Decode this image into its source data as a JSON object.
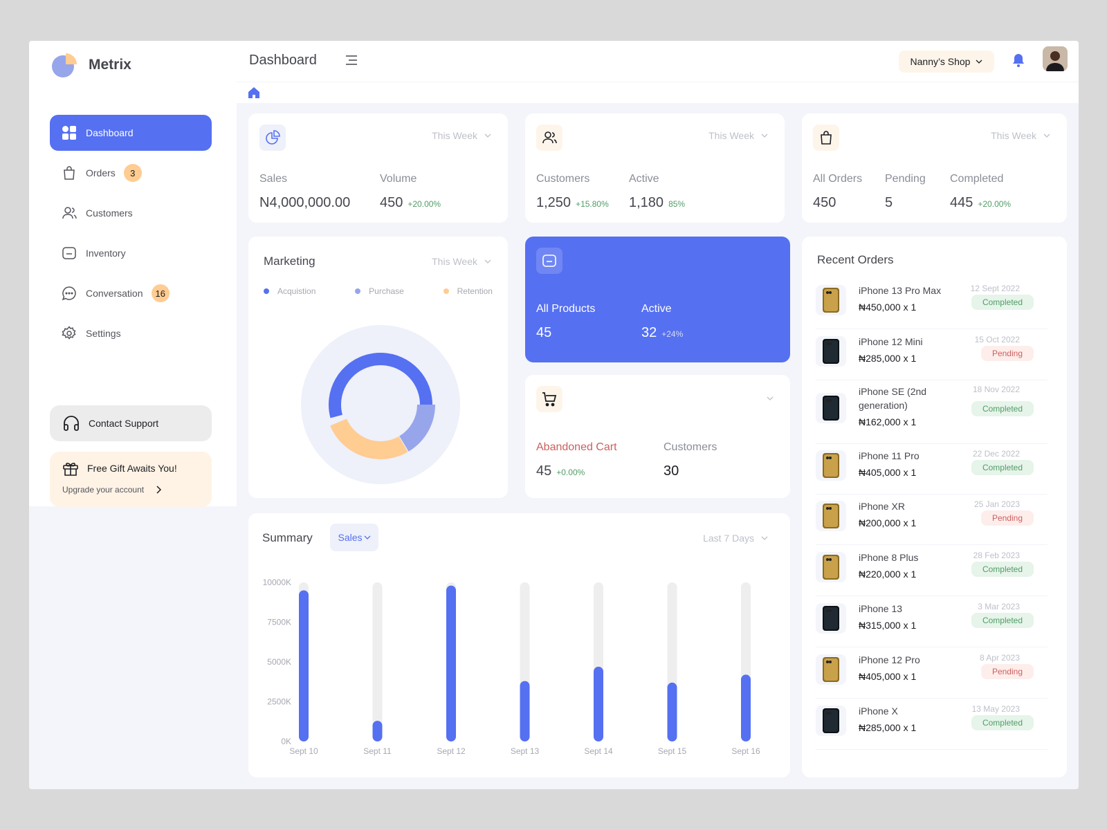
{
  "app": {
    "name": "Metrix"
  },
  "header": {
    "title": "Dashboard",
    "shop": "Nanny’s Shop"
  },
  "sidebar": {
    "items": [
      {
        "label": "Dashboard"
      },
      {
        "label": "Orders",
        "badge": "3"
      },
      {
        "label": "Customers"
      },
      {
        "label": "Inventory"
      },
      {
        "label": "Conversation",
        "badge": "16"
      },
      {
        "label": "Settings"
      }
    ],
    "support": "Contact Support",
    "gift_title": "Free Gift Awaits You!",
    "gift_sub": "Upgrade your account"
  },
  "sales_card": {
    "period": "This Week",
    "sales_label": "Sales",
    "sales_value": "N4,000,000.00",
    "volume_label": "Volume",
    "volume_value": "450",
    "volume_change": "+20.00%"
  },
  "customers_card": {
    "period": "This Week",
    "customers_label": "Customers",
    "customers_value": "1,250",
    "customers_change": "+15.80%",
    "active_label": "Active",
    "active_value": "1,180",
    "active_change": "85%"
  },
  "orders_card": {
    "period": "This Week",
    "all_label": "All Orders",
    "all_value": "450",
    "pending_label": "Pending",
    "pending_value": "5",
    "completed_label": "Completed",
    "completed_value": "445",
    "completed_change": "+20.00%"
  },
  "marketing": {
    "title": "Marketing",
    "period": "This Week",
    "legend": [
      "Acquistion",
      "Purchase",
      "Retention"
    ]
  },
  "products_card": {
    "all_label": "All Products",
    "all_value": "45",
    "active_label": "Active",
    "active_value": "32",
    "active_change": "+24%"
  },
  "cart_card": {
    "abandoned_label": "Abandoned Cart",
    "abandoned_value": "45",
    "abandoned_change": "+0.00%",
    "customers_label": "Customers",
    "customers_value": "30"
  },
  "summary": {
    "title": "Summary",
    "metric": "Sales",
    "period": "Last 7 Days"
  },
  "chart_data": {
    "type": "bar",
    "categories": [
      "Sept 10",
      "Sept 11",
      "Sept 12",
      "Sept 13",
      "Sept 14",
      "Sept 15",
      "Sept 16"
    ],
    "values": [
      9500,
      1300,
      9800,
      3800,
      4700,
      3700,
      4200
    ],
    "y_ticks": [
      "0K",
      "2500K",
      "5000K",
      "7500K",
      "10000K"
    ],
    "ylim": [
      0,
      10000
    ],
    "colors": {
      "bar": "#5570f1",
      "track": "#eeeeee"
    }
  },
  "recent_orders": {
    "title": "Recent Orders",
    "items": [
      {
        "name": "iPhone 13 Pro Max",
        "price": "₦450,000 x 1",
        "date": "12 Sept 2022",
        "status": "Completed",
        "color": "gold"
      },
      {
        "name": "iPhone 12 Mini",
        "price": "₦285,000 x 1",
        "date": "15 Oct 2022",
        "status": "Pending",
        "color": "dark"
      },
      {
        "name": "iPhone SE (2nd generation)",
        "price": "₦162,000 x 1",
        "date": "18 Nov 2022",
        "status": "Completed",
        "color": "dark"
      },
      {
        "name": "iPhone 11 Pro",
        "price": "₦405,000 x 1",
        "date": "22 Dec 2022",
        "status": "Completed",
        "color": "gold"
      },
      {
        "name": "iPhone XR",
        "price": "₦200,000 x 1",
        "date": "25 Jan 2023",
        "status": "Pending",
        "color": "gold"
      },
      {
        "name": "iPhone 8 Plus",
        "price": "₦220,000 x 1",
        "date": "28 Feb 2023",
        "status": "Completed",
        "color": "gold"
      },
      {
        "name": "iPhone 13",
        "price": "₦315,000 x 1",
        "date": "3 Mar 2023",
        "status": "Completed",
        "color": "dark"
      },
      {
        "name": "iPhone 12 Pro",
        "price": "₦405,000 x 1",
        "date": "8 Apr 2023",
        "status": "Pending",
        "color": "gold"
      },
      {
        "name": "iPhone X",
        "price": "₦285,000 x 1",
        "date": "13 May 2023",
        "status": "Completed",
        "color": "dark"
      }
    ]
  }
}
